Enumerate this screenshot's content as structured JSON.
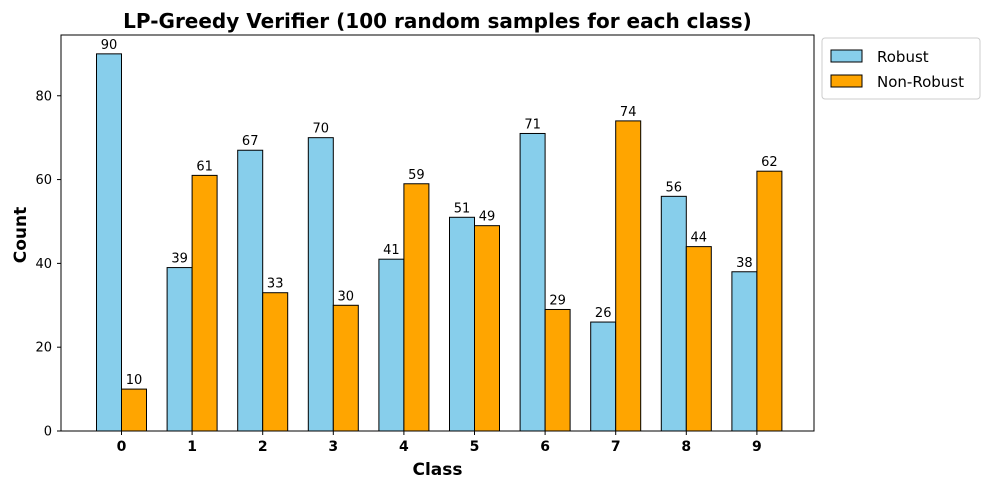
{
  "chart_data": {
    "type": "bar",
    "title": "LP-Greedy Verifier (100 random samples for each class)",
    "xlabel": "Class",
    "ylabel": "Count",
    "categories": [
      "0",
      "1",
      "2",
      "3",
      "4",
      "5",
      "6",
      "7",
      "8",
      "9"
    ],
    "yticks": [
      0,
      20,
      40,
      60,
      80
    ],
    "ylim": [
      0,
      94.5
    ],
    "grid": false,
    "legend_position": "outside upper-right",
    "series": [
      {
        "name": "Robust",
        "color": "#87CEEB",
        "values": [
          90,
          39,
          67,
          70,
          41,
          51,
          71,
          26,
          56,
          38
        ]
      },
      {
        "name": "Non-Robust",
        "color": "#FFA500",
        "values": [
          10,
          61,
          33,
          30,
          59,
          49,
          29,
          74,
          44,
          62
        ]
      }
    ]
  }
}
